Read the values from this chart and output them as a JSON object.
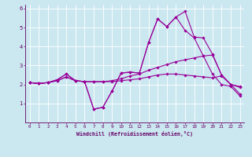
{
  "xlabel": "Windchill (Refroidissement éolien,°C)",
  "background_color": "#cbe8f0",
  "grid_color": "#ffffff",
  "line_color": "#990099",
  "xlim": [
    -0.5,
    23.5
  ],
  "ylim": [
    0,
    6.2
  ],
  "xticks": [
    0,
    1,
    2,
    3,
    4,
    5,
    6,
    7,
    8,
    9,
    10,
    11,
    12,
    13,
    14,
    15,
    16,
    17,
    18,
    19,
    20,
    21,
    22,
    23
  ],
  "yticks": [
    1,
    2,
    3,
    4,
    5,
    6
  ],
  "lines": [
    [
      2.1,
      2.05,
      2.1,
      2.25,
      2.55,
      2.2,
      2.15,
      0.7,
      0.8,
      1.65,
      2.6,
      2.65,
      2.6,
      4.2,
      5.45,
      5.05,
      5.55,
      5.85,
      4.5,
      4.45,
      3.6,
      2.5,
      2.0,
      1.9
    ],
    [
      2.1,
      2.05,
      2.1,
      2.25,
      2.55,
      2.2,
      2.15,
      0.7,
      0.8,
      1.65,
      2.6,
      2.65,
      2.6,
      4.2,
      5.45,
      5.05,
      5.55,
      4.85,
      4.45,
      3.5,
      2.55,
      2.0,
      1.9,
      1.4
    ],
    [
      2.1,
      2.05,
      2.1,
      2.2,
      2.4,
      2.2,
      2.15,
      2.15,
      2.15,
      2.2,
      2.3,
      2.45,
      2.55,
      2.75,
      2.9,
      3.05,
      3.2,
      3.3,
      3.4,
      3.5,
      3.55,
      2.5,
      2.0,
      1.5
    ],
    [
      2.1,
      2.05,
      2.1,
      2.2,
      2.4,
      2.2,
      2.15,
      2.15,
      2.15,
      2.15,
      2.2,
      2.25,
      2.3,
      2.4,
      2.5,
      2.55,
      2.55,
      2.5,
      2.45,
      2.4,
      2.35,
      2.45,
      2.0,
      1.85
    ]
  ]
}
